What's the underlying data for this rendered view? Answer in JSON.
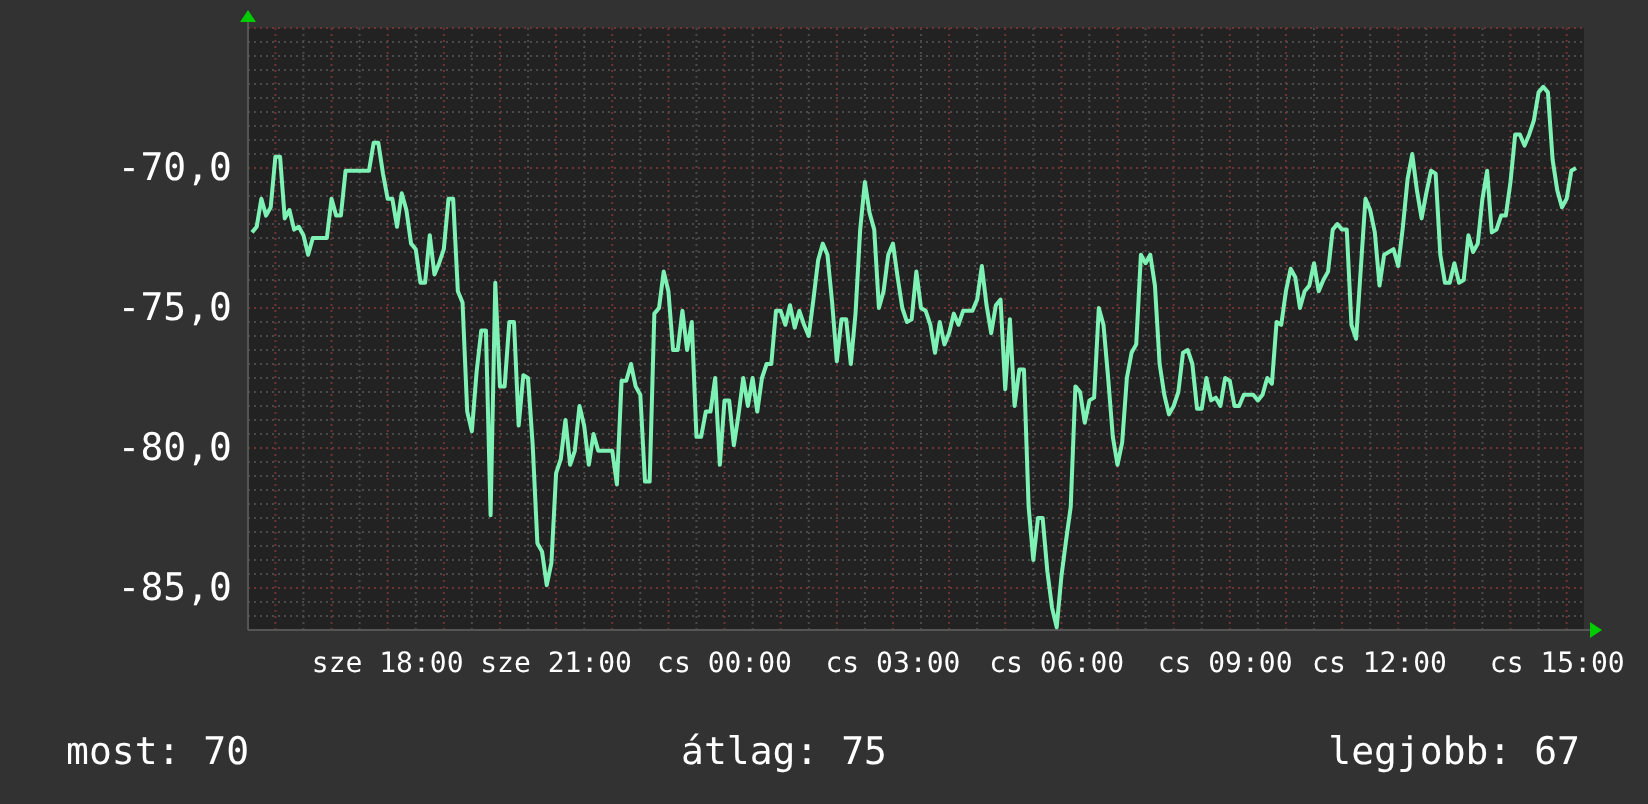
{
  "chart_data": {
    "type": "line",
    "annotations": [
      "most: 70",
      "átlag: 75",
      "legjobb: 67"
    ],
    "categories": [
      null,
      null,
      null,
      null,
      null,
      null,
      null,
      null,
      null,
      null,
      null,
      null,
      null,
      null,
      null,
      null,
      null,
      null,
      null,
      null,
      null,
      null,
      null,
      null,
      null,
      null,
      null,
      null,
      null,
      "sze 18:00",
      null,
      null,
      null,
      null,
      null,
      null,
      null,
      null,
      null,
      null,
      null,
      null,
      null,
      null,
      null,
      null,
      null,
      null,
      null,
      null,
      null,
      null,
      null,
      null,
      null,
      null,
      null,
      null,
      null,
      null,
      null,
      null,
      null,
      null,
      null,
      "sze 21:00",
      null,
      null,
      null,
      null,
      null,
      null,
      null,
      null,
      null,
      null,
      null,
      null,
      null,
      null,
      null,
      null,
      null,
      null,
      null,
      null,
      null,
      null,
      null,
      null,
      null,
      null,
      null,
      null,
      null,
      null,
      null,
      null,
      null,
      null,
      null,
      "cs 00:00",
      null,
      null,
      null,
      null,
      null,
      null,
      null,
      null,
      null,
      null,
      null,
      null,
      null,
      null,
      null,
      null,
      null,
      null,
      null,
      null,
      null,
      null,
      null,
      null,
      null,
      null,
      null,
      null,
      null,
      null,
      null,
      null,
      null,
      null,
      null,
      "cs 03:00",
      null,
      null,
      null,
      null,
      null,
      null,
      null,
      null,
      null,
      null,
      null,
      null,
      null,
      null,
      null,
      null,
      null,
      null,
      null,
      null,
      null,
      null,
      null,
      null,
      null,
      null,
      null,
      null,
      null,
      null,
      null,
      null,
      null,
      null,
      "cs 06:00",
      null,
      null,
      null,
      null,
      null,
      null,
      null,
      null,
      null,
      null,
      null,
      null,
      null,
      null,
      null,
      null,
      null,
      null,
      null,
      null,
      null,
      null,
      null,
      null,
      null,
      null,
      null,
      null,
      null,
      null,
      null,
      null,
      null,
      null,
      null,
      "cs 09:00",
      null,
      null,
      null,
      null,
      null,
      null,
      null,
      null,
      null,
      null,
      null,
      null,
      null,
      null,
      null,
      null,
      null,
      null,
      null,
      null,
      null,
      null,
      null,
      null,
      null,
      null,
      null,
      null,
      null,
      null,
      null,
      null,
      "cs 12:00",
      null,
      null,
      null,
      null,
      null,
      null,
      null,
      null,
      null,
      null,
      null,
      null,
      null,
      null,
      null,
      null,
      null,
      null,
      null,
      null,
      null,
      null,
      null,
      null,
      null,
      null,
      null,
      null,
      null,
      null,
      null,
      null,
      null,
      null,
      null,
      null,
      null,
      "cs 15:00",
      null,
      null,
      null,
      null
    ],
    "ylim": [
      -86.5,
      -65
    ],
    "yticks": [
      {
        "value": -85,
        "label": "-85,0"
      },
      {
        "value": -80,
        "label": "-80,0"
      },
      {
        "value": -75,
        "label": "-75,0"
      },
      {
        "value": -70,
        "label": "-70,0"
      }
    ],
    "grid": true,
    "series": [
      {
        "color": "#7ef2b4",
        "values": [
          -72.3,
          -72.1,
          -71.1,
          -71.7,
          -71.4,
          -69.6,
          -69.6,
          -71.8,
          -71.5,
          -72.2,
          -72.1,
          -72.4,
          -73.1,
          -72.5,
          -72.5,
          -72.5,
          -72.5,
          -71.1,
          -71.7,
          -71.7,
          -70.1,
          -70.1,
          -70.1,
          -70.1,
          -70.1,
          -70.1,
          -69.1,
          -69.1,
          -70.2,
          -71.1,
          -71.1,
          -72.1,
          -70.9,
          -71.5,
          -72.7,
          -72.9,
          -74.1,
          -74.1,
          -72.4,
          -73.8,
          -73.4,
          -72.9,
          -71.1,
          -71.1,
          -74.4,
          -74.8,
          -78.7,
          -79.4,
          -77.3,
          -75.8,
          -75.8,
          -82.4,
          -74.1,
          -77.8,
          -77.8,
          -75.5,
          -75.5,
          -79.2,
          -77.4,
          -77.5,
          -79.9,
          -83.4,
          -83.7,
          -84.9,
          -84.1,
          -80.9,
          -80.4,
          -79.0,
          -80.6,
          -80.1,
          -78.5,
          -79.2,
          -80.6,
          -79.5,
          -80.1,
          -80.1,
          -80.1,
          -80.1,
          -81.3,
          -77.6,
          -77.6,
          -77.0,
          -77.8,
          -78.1,
          -81.2,
          -81.2,
          -75.2,
          -75.0,
          -73.7,
          -74.4,
          -76.5,
          -76.5,
          -75.1,
          -76.5,
          -75.5,
          -79.6,
          -79.6,
          -78.7,
          -78.7,
          -77.5,
          -80.6,
          -78.3,
          -78.3,
          -79.9,
          -78.8,
          -77.5,
          -78.5,
          -77.5,
          -78.7,
          -77.5,
          -77.0,
          -77.0,
          -75.1,
          -75.1,
          -75.6,
          -74.9,
          -75.7,
          -75.1,
          -75.6,
          -76.0,
          -74.7,
          -73.3,
          -72.7,
          -73.1,
          -74.8,
          -76.9,
          -75.4,
          -75.4,
          -77.0,
          -75.2,
          -72.2,
          -70.5,
          -71.6,
          -72.2,
          -75.0,
          -74.4,
          -73.1,
          -72.7,
          -73.9,
          -75.0,
          -75.5,
          -75.4,
          -73.7,
          -75.0,
          -75.1,
          -75.6,
          -76.6,
          -75.5,
          -76.3,
          -75.9,
          -75.2,
          -75.6,
          -75.1,
          -75.1,
          -75.1,
          -74.7,
          -73.5,
          -74.9,
          -75.9,
          -74.9,
          -74.7,
          -77.9,
          -75.4,
          -78.5,
          -77.2,
          -77.2,
          -82.1,
          -84.0,
          -82.5,
          -82.5,
          -84.4,
          -85.7,
          -86.4,
          -84.6,
          -83.3,
          -82.1,
          -77.8,
          -78.0,
          -79.1,
          -78.3,
          -78.2,
          -75.0,
          -75.6,
          -77.5,
          -79.6,
          -80.6,
          -79.8,
          -77.5,
          -76.6,
          -76.3,
          -73.1,
          -73.4,
          -73.1,
          -74.2,
          -77.0,
          -78.1,
          -78.8,
          -78.5,
          -78.0,
          -76.6,
          -76.5,
          -77.0,
          -78.6,
          -78.6,
          -77.5,
          -78.3,
          -78.2,
          -78.5,
          -77.5,
          -77.6,
          -78.5,
          -78.5,
          -78.1,
          -78.1,
          -78.1,
          -78.3,
          -78.1,
          -77.5,
          -77.7,
          -75.5,
          -75.6,
          -74.4,
          -73.6,
          -73.9,
          -75.0,
          -74.4,
          -74.2,
          -73.4,
          -74.4,
          -74.0,
          -73.7,
          -72.2,
          -72.0,
          -72.2,
          -72.2,
          -75.6,
          -76.1,
          -73.6,
          -71.1,
          -71.5,
          -72.3,
          -74.2,
          -73.1,
          -73.0,
          -72.9,
          -73.5,
          -72.1,
          -70.4,
          -69.5,
          -70.8,
          -71.8,
          -70.9,
          -70.1,
          -70.2,
          -73.1,
          -74.1,
          -74.1,
          -73.4,
          -74.1,
          -74.0,
          -72.4,
          -73.0,
          -72.7,
          -71.1,
          -70.1,
          -72.3,
          -72.2,
          -71.7,
          -71.7,
          -70.5,
          -68.8,
          -68.8,
          -69.2,
          -68.8,
          -68.3,
          -67.3,
          -67.1,
          -67.3,
          -69.7,
          -70.8,
          -71.4,
          -71.1,
          -70.1,
          -70.0
        ]
      }
    ]
  }
}
